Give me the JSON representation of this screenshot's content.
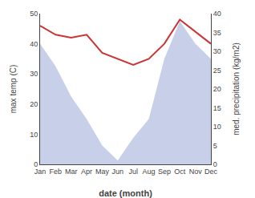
{
  "chart_data": {
    "type": "line",
    "xlabel": "date (month)",
    "ylabel": "max temp (C)",
    "y2label": "med. precipitation (kg/m2)",
    "categories": [
      "Jan",
      "Feb",
      "Mar",
      "Apr",
      "May",
      "Jun",
      "Jul",
      "Aug",
      "Sep",
      "Oct",
      "Nov",
      "Dec"
    ],
    "series": [
      {
        "type": "area",
        "axis": "y2",
        "color": "#c8cfe8",
        "values": [
          32,
          26,
          18,
          12,
          5,
          1,
          7,
          12,
          28,
          38,
          32,
          28
        ]
      },
      {
        "type": "line",
        "color": "#cc3333",
        "values": [
          46,
          43,
          42,
          43,
          37,
          35,
          33,
          35,
          40,
          48,
          44,
          40
        ]
      }
    ],
    "ylim": [
      0,
      50
    ],
    "yticks": [
      0,
      10,
      20,
      30,
      40,
      50
    ],
    "y2lim": [
      0,
      40
    ],
    "y2ticks": [
      0,
      5,
      10,
      15,
      20,
      25,
      30,
      35,
      40
    ],
    "grid": false
  }
}
